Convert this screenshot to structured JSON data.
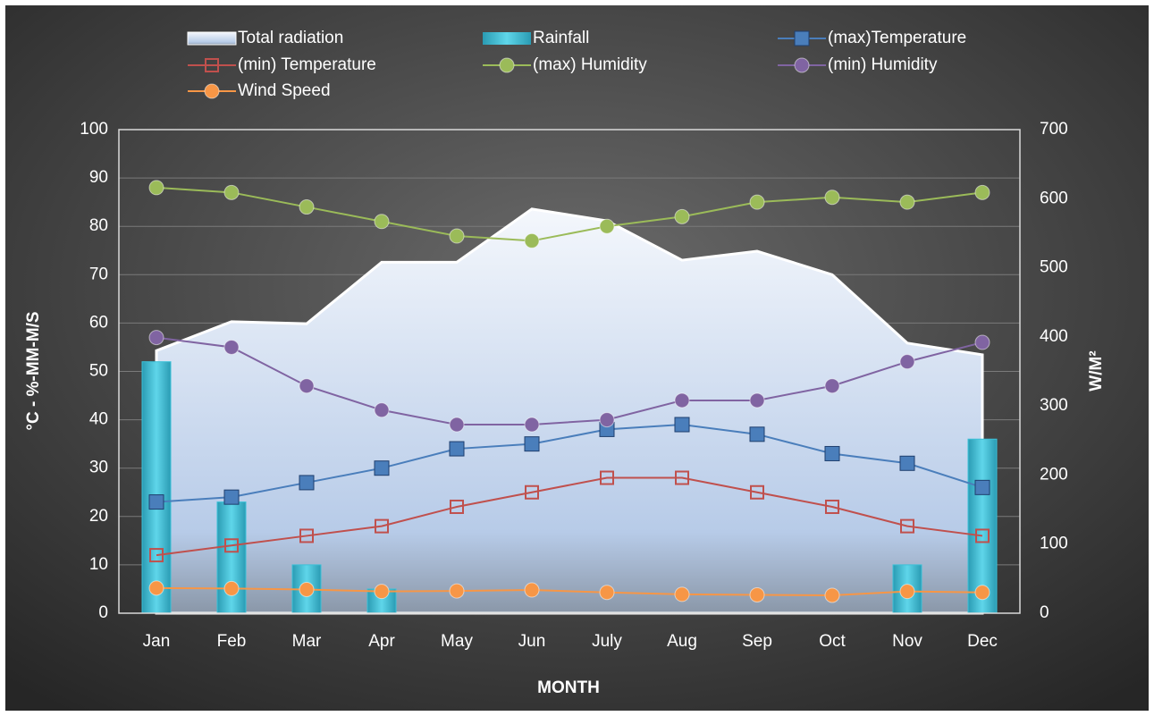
{
  "chart_data": {
    "type": "combo",
    "categories": [
      "Jan",
      "Feb",
      "Mar",
      "Apr",
      "May",
      "Jun",
      "July",
      "Aug",
      "Sep",
      "Oct",
      "Nov",
      "Dec"
    ],
    "x_label": "MONTH",
    "y_label": "°C - %-MM-M/S",
    "y2_label": "W/M²",
    "ylim": [
      0,
      100
    ],
    "yticks": [
      0,
      10,
      20,
      30,
      40,
      50,
      60,
      70,
      80,
      90,
      100
    ],
    "y2lim": [
      0,
      700
    ],
    "y2ticks": [
      0,
      100,
      200,
      300,
      400,
      500,
      600,
      700
    ],
    "grid": true,
    "legend": "top",
    "series": [
      {
        "name": "Total radiation",
        "type": "area",
        "axis": "y2",
        "color": "#dbe6f5",
        "values": [
          380,
          422,
          419,
          508,
          508,
          585,
          568,
          511,
          524,
          490,
          391,
          374
        ]
      },
      {
        "name": "Rainfall",
        "type": "bar",
        "color": "#3cc1d8",
        "values": [
          52,
          23,
          10,
          5,
          0,
          0,
          0,
          0,
          0,
          0,
          10,
          36
        ]
      },
      {
        "name": "(max)Temperature",
        "type": "line",
        "marker": "square",
        "color": "#4a7ebb",
        "values": [
          23,
          24,
          27,
          30,
          34,
          35,
          38,
          39,
          37,
          33,
          31,
          26
        ]
      },
      {
        "name": "(min) Temperature",
        "type": "line",
        "marker": "hollow-square",
        "color": "#c0504d",
        "values": [
          12,
          14,
          16,
          18,
          22,
          25,
          28,
          28,
          25,
          22,
          18,
          16
        ]
      },
      {
        "name": "(max) Humidity",
        "type": "line",
        "marker": "circle",
        "color": "#9bbb59",
        "values": [
          88,
          87,
          84,
          81,
          78,
          77,
          80,
          82,
          85,
          86,
          85,
          87
        ]
      },
      {
        "name": "(min) Humidity",
        "type": "line",
        "marker": "circle",
        "color": "#8064a2",
        "values": [
          57,
          55,
          47,
          42,
          39,
          39,
          40,
          44,
          44,
          47,
          52,
          56
        ]
      },
      {
        "name": "Wind Speed",
        "type": "line",
        "marker": "circle",
        "color": "#f79646",
        "values": [
          5.2,
          5.1,
          4.9,
          4.5,
          4.6,
          4.8,
          4.3,
          3.9,
          3.8,
          3.7,
          4.5,
          4.3
        ]
      }
    ]
  }
}
